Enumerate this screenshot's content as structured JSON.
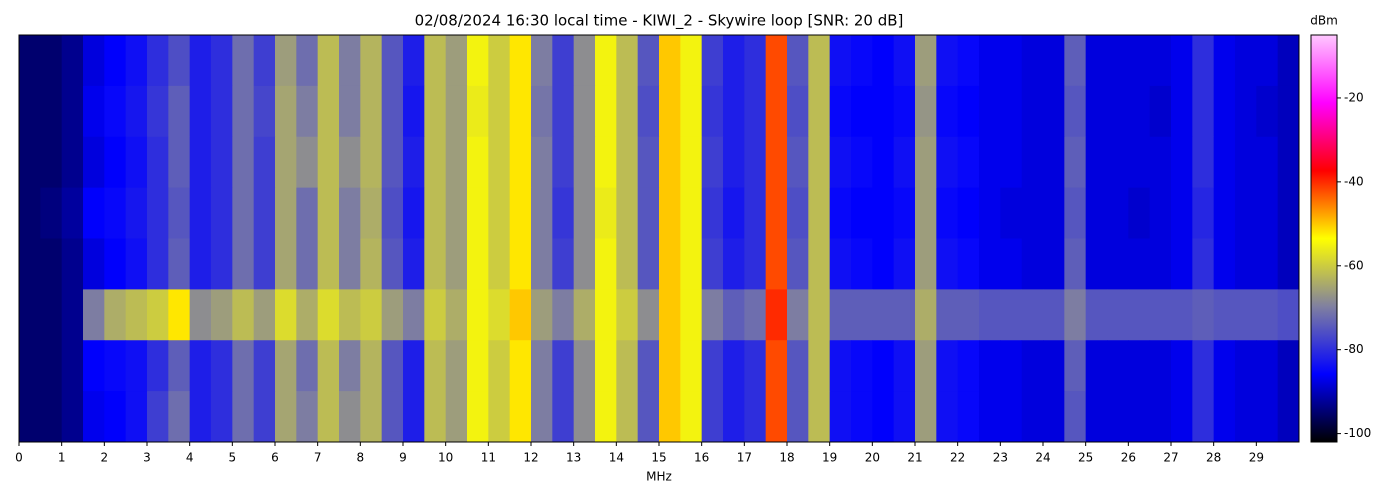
{
  "chart_data": {
    "type": "heatmap",
    "title": "02/08/2024 16:30 local time - KIWI_2 - Skywire loop [SNR: 20 dB]",
    "xlabel": "MHz",
    "colorbar_label": "dBm",
    "xlim": [
      0,
      30
    ],
    "xticks": [
      0,
      1,
      2,
      3,
      4,
      5,
      6,
      7,
      8,
      9,
      10,
      11,
      12,
      13,
      14,
      15,
      16,
      17,
      18,
      19,
      20,
      21,
      22,
      23,
      24,
      25,
      26,
      27,
      28,
      29
    ],
    "zlim": [
      -102,
      -5
    ],
    "zticks": [
      -100,
      -80,
      -60,
      -40,
      -20
    ],
    "colormap": [
      "#000000",
      "#0000ff",
      "#8080a0",
      "#ffff00",
      "#ff0000",
      "#ff00ff",
      "#ffc8ff"
    ],
    "x": [
      0.25,
      0.75,
      1.25,
      1.75,
      2.25,
      2.75,
      3.25,
      3.75,
      4.25,
      4.75,
      5.25,
      5.75,
      6.25,
      6.75,
      7.25,
      7.75,
      8.25,
      8.75,
      9.25,
      9.75,
      10.25,
      10.75,
      11.25,
      11.75,
      12.25,
      12.75,
      13.25,
      13.75,
      14.25,
      14.75,
      15.25,
      15.75,
      16.25,
      16.75,
      17.25,
      17.75,
      18.25,
      18.75,
      19.25,
      19.75,
      20.25,
      20.75,
      21.25,
      21.75,
      22.25,
      22.75,
      23.25,
      23.75,
      24.25,
      24.75,
      25.25,
      25.75,
      26.25,
      26.75,
      27.25,
      27.75,
      28.25,
      28.75,
      29.25,
      29.75
    ],
    "z": [
      [
        -95,
        -95,
        -93,
        -88,
        -86,
        -84,
        -80,
        -76,
        -82,
        -80,
        -72,
        -78,
        -66,
        -72,
        -62,
        -70,
        -63,
        -75,
        -82,
        -62,
        -66,
        -55,
        -60,
        -52,
        -70,
        -78,
        -68,
        -55,
        -62,
        -75,
        -50,
        -55,
        -78,
        -82,
        -80,
        -42,
        -75,
        -62,
        -84,
        -85,
        -86,
        -84,
        -66,
        -84,
        -85,
        -87,
        -87,
        -88,
        -88,
        -74,
        -88,
        -88,
        -88,
        -88,
        -87,
        -80,
        -87,
        -88,
        -88,
        -90
      ],
      [
        -95,
        -95,
        -93,
        -87,
        -85,
        -83,
        -79,
        -74,
        -82,
        -80,
        -72,
        -77,
        -65,
        -70,
        -62,
        -70,
        -63,
        -75,
        -83,
        -62,
        -66,
        -56,
        -60,
        -52,
        -71,
        -78,
        -68,
        -55,
        -62,
        -76,
        -50,
        -55,
        -79,
        -82,
        -80,
        -42,
        -76,
        -62,
        -85,
        -86,
        -86,
        -85,
        -67,
        -85,
        -86,
        -87,
        -87,
        -88,
        -88,
        -75,
        -88,
        -88,
        -88,
        -89,
        -87,
        -80,
        -87,
        -88,
        -89,
        -90
      ],
      [
        -95,
        -95,
        -93,
        -88,
        -86,
        -84,
        -80,
        -74,
        -82,
        -80,
        -72,
        -78,
        -65,
        -68,
        -62,
        -68,
        -63,
        -75,
        -82,
        -62,
        -66,
        -55,
        -60,
        -52,
        -70,
        -78,
        -68,
        -55,
        -62,
        -75,
        -50,
        -55,
        -78,
        -82,
        -80,
        -42,
        -75,
        -62,
        -84,
        -85,
        -86,
        -84,
        -66,
        -84,
        -85,
        -87,
        -87,
        -88,
        -88,
        -74,
        -88,
        -88,
        -88,
        -88,
        -87,
        -80,
        -87,
        -88,
        -88,
        -90
      ],
      [
        -95,
        -94,
        -92,
        -86,
        -85,
        -83,
        -80,
        -75,
        -82,
        -80,
        -72,
        -78,
        -65,
        -72,
        -62,
        -70,
        -64,
        -76,
        -83,
        -62,
        -66,
        -55,
        -60,
        -52,
        -70,
        -79,
        -68,
        -56,
        -62,
        -75,
        -50,
        -55,
        -79,
        -83,
        -80,
        -42,
        -76,
        -62,
        -85,
        -86,
        -86,
        -85,
        -66,
        -85,
        -86,
        -87,
        -88,
        -88,
        -88,
        -75,
        -88,
        -88,
        -89,
        -88,
        -87,
        -81,
        -87,
        -88,
        -88,
        -90
      ],
      [
        -95,
        -95,
        -93,
        -88,
        -86,
        -84,
        -80,
        -74,
        -82,
        -80,
        -72,
        -78,
        -65,
        -72,
        -62,
        -70,
        -63,
        -75,
        -82,
        -62,
        -66,
        -55,
        -60,
        -52,
        -70,
        -78,
        -68,
        -55,
        -62,
        -75,
        -50,
        -55,
        -78,
        -82,
        -80,
        -42,
        -75,
        -62,
        -84,
        -85,
        -86,
        -84,
        -66,
        -84,
        -85,
        -87,
        -87,
        -88,
        -88,
        -74,
        -88,
        -88,
        -88,
        -88,
        -87,
        -80,
        -87,
        -88,
        -88,
        -90
      ],
      [
        -95,
        -95,
        -93,
        -70,
        -64,
        -62,
        -60,
        -52,
        -68,
        -66,
        -62,
        -66,
        -58,
        -64,
        -58,
        -62,
        -60,
        -66,
        -70,
        -60,
        -64,
        -55,
        -58,
        -50,
        -66,
        -70,
        -64,
        -55,
        -60,
        -68,
        -50,
        -55,
        -70,
        -74,
        -72,
        -40,
        -70,
        -62,
        -74,
        -74,
        -74,
        -74,
        -64,
        -74,
        -74,
        -75,
        -75,
        -75,
        -75,
        -70,
        -75,
        -75,
        -75,
        -75,
        -75,
        -74,
        -75,
        -75,
        -75,
        -76
      ],
      [
        -95,
        -95,
        -93,
        -86,
        -85,
        -84,
        -80,
        -74,
        -82,
        -80,
        -72,
        -78,
        -65,
        -72,
        -62,
        -70,
        -63,
        -75,
        -82,
        -62,
        -66,
        -55,
        -60,
        -52,
        -70,
        -78,
        -68,
        -55,
        -62,
        -75,
        -50,
        -55,
        -78,
        -82,
        -80,
        -42,
        -75,
        -62,
        -84,
        -85,
        -86,
        -84,
        -66,
        -84,
        -85,
        -87,
        -87,
        -88,
        -88,
        -74,
        -88,
        -88,
        -88,
        -88,
        -87,
        -80,
        -87,
        -88,
        -88,
        -90
      ],
      [
        -95,
        -95,
        -93,
        -87,
        -86,
        -84,
        -78,
        -72,
        -82,
        -80,
        -72,
        -78,
        -65,
        -70,
        -62,
        -68,
        -63,
        -75,
        -82,
        -62,
        -66,
        -55,
        -60,
        -52,
        -70,
        -78,
        -68,
        -55,
        -62,
        -75,
        -50,
        -55,
        -78,
        -82,
        -80,
        -42,
        -75,
        -62,
        -84,
        -85,
        -86,
        -84,
        -66,
        -84,
        -85,
        -87,
        -87,
        -88,
        -88,
        -75,
        -88,
        -88,
        -88,
        -88,
        -87,
        -80,
        -87,
        -88,
        -88,
        -90
      ]
    ]
  }
}
